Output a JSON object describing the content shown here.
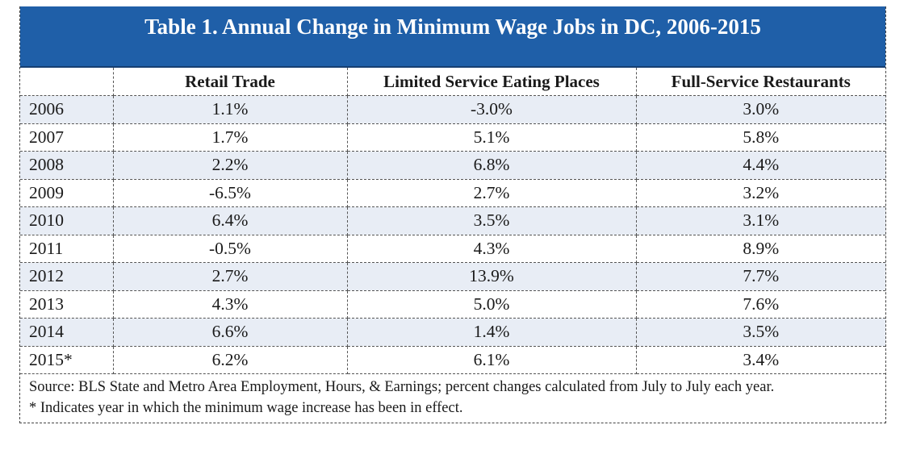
{
  "title": "Table 1. Annual Change in Minimum Wage Jobs in DC, 2006-2015",
  "colors": {
    "title_bar": "#1f5fa8",
    "row_shade": "#e8edf5"
  },
  "table": {
    "headers": [
      "",
      "Retail Trade",
      "Limited Service Eating Places",
      "Full-Service Restaurants"
    ],
    "rows": [
      {
        "year": "2006",
        "retail": "1.1%",
        "limited": "-3.0%",
        "full": "3.0%"
      },
      {
        "year": "2007",
        "retail": "1.7%",
        "limited": "5.1%",
        "full": "5.8%"
      },
      {
        "year": "2008",
        "retail": "2.2%",
        "limited": "6.8%",
        "full": "4.4%"
      },
      {
        "year": "2009",
        "retail": "-6.5%",
        "limited": "2.7%",
        "full": "3.2%"
      },
      {
        "year": "2010",
        "retail": "6.4%",
        "limited": "3.5%",
        "full": "3.1%"
      },
      {
        "year": "2011",
        "retail": "-0.5%",
        "limited": "4.3%",
        "full": "8.9%"
      },
      {
        "year": "2012",
        "retail": "2.7%",
        "limited": "13.9%",
        "full": "7.7%"
      },
      {
        "year": "2013",
        "retail": "4.3%",
        "limited": "5.0%",
        "full": "7.6%"
      },
      {
        "year": "2014",
        "retail": "6.6%",
        "limited": "1.4%",
        "full": "3.5%"
      },
      {
        "year": "2015*",
        "retail": "6.2%",
        "limited": "6.1%",
        "full": "3.4%"
      }
    ]
  },
  "notes": {
    "source": "Source: BLS State and Metro Area Employment, Hours, & Earnings; percent changes calculated from July to July each year.",
    "footnote": "* Indicates year in which the minimum wage increase has been in effect."
  }
}
